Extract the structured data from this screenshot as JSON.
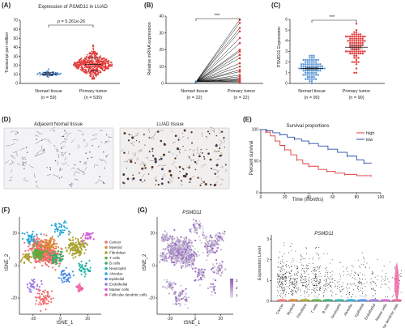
{
  "colors": {
    "normal": "#3f7fce",
    "tumor": "#e23b3b",
    "high": "#e23b3b",
    "low": "#2d4fa8",
    "accent_purple": "#8e5bb5"
  },
  "panels": {
    "A": {
      "letter": "(A)",
      "title_pre": "Expression of ",
      "title_gene": "PSMD11",
      "title_post": " in LUAD",
      "ylabel": "Transcript per million",
      "pvalue": "p = 5.261e-26",
      "groups": [
        {
          "name": "Nomarl tissue",
          "n": "(n = 59)"
        },
        {
          "name": "Primary tumor",
          "n": "(n = 539)"
        }
      ]
    },
    "B": {
      "letter": "(B)",
      "ylabel": "Relative mRNA expression",
      "sig": "***",
      "groups": [
        {
          "name": "Nomarl tissue",
          "n": "(n = 22)"
        },
        {
          "name": "Primary tumor",
          "n": "(n = 22)"
        }
      ]
    },
    "C": {
      "letter": "(C)",
      "ylabel": "PSMD11 Expression",
      "sig": "***",
      "groups": [
        {
          "name": "Nomarl tissue",
          "n": "(n = 90)"
        },
        {
          "name": "Primary tumor",
          "n": "(n = 90)"
        }
      ]
    },
    "D": {
      "letter": "(D)",
      "left_title": "Adjacent Nornal tissue",
      "right_title": "LUAD tissue"
    },
    "E": {
      "letter": "(E)",
      "title": "Survival proportions",
      "xlabel": "Time (months)",
      "ylabel": "Percent survival",
      "legend": [
        "high",
        "low"
      ]
    },
    "F": {
      "letter": "(F)",
      "xlabel": "tSNE_1",
      "ylabel": "tSNE_2",
      "legend": [
        {
          "label": "Cancer",
          "color": "#f26d6d"
        },
        {
          "label": "Myeloid",
          "color": "#d88a2f"
        },
        {
          "label": "Fibroblast",
          "color": "#a8a22d"
        },
        {
          "label": "T cells",
          "color": "#5bad3c"
        },
        {
          "label": "B cells",
          "color": "#2fb06c"
        },
        {
          "label": "Neutrophil",
          "color": "#27b3a5"
        },
        {
          "label": "Alveolar",
          "color": "#26a8d8"
        },
        {
          "label": "Epithelial",
          "color": "#4d8ae8"
        },
        {
          "label": "Endothelial",
          "color": "#9b74e0"
        },
        {
          "label": "Master cells",
          "color": "#d560d6"
        },
        {
          "label": "Follicular dendritic cells",
          "color": "#ec5da0"
        }
      ]
    },
    "G": {
      "letter": "(G)",
      "gene": "PSMD11",
      "xlabel": "tSNE_1",
      "ylabel": "tSNE_2",
      "violin_title": "PSMD11",
      "violin_ylabel": "Expression Level",
      "violin_categories": [
        "Cancer",
        "Myeloid",
        "Fibroblast",
        "T cells",
        "B cells",
        "Neutrophil",
        "Alveolar",
        "Epithelial",
        "Endothelial",
        "Master cells",
        "Follicular dendritic cells"
      ]
    }
  },
  "chart_data": [
    {
      "id": "A",
      "type": "scatter",
      "title": "Expression of PSMD11 in LUAD",
      "ylabel": "Transcript per million",
      "ylim": [
        0,
        70
      ],
      "yticks": [
        0,
        10,
        20,
        30,
        40,
        50,
        60,
        70
      ],
      "categories": [
        "Nomarl tissue",
        "Primary tumor"
      ],
      "series": [
        {
          "name": "Nomarl tissue",
          "n": 59,
          "mean": 10.5,
          "sd": 1.5,
          "min": 7,
          "max": 16
        },
        {
          "name": "Primary tumor",
          "n": 539,
          "mean": 21,
          "sd": 7,
          "min": 5,
          "max": 66
        }
      ]
    },
    {
      "id": "B",
      "type": "line",
      "ylabel": "Relative mRNA expression",
      "ylim": [
        0,
        40
      ],
      "yticks": [
        0,
        10,
        20,
        30,
        40
      ],
      "categories": [
        "Nomarl tissue",
        "Primary tumor"
      ],
      "pairs": [
        [
          1,
          38
        ],
        [
          1,
          36
        ],
        [
          1,
          33
        ],
        [
          1,
          31
        ],
        [
          1,
          27
        ],
        [
          1,
          24
        ],
        [
          1,
          20
        ],
        [
          1,
          19
        ],
        [
          1,
          17
        ],
        [
          1,
          15
        ],
        [
          1,
          12
        ],
        [
          1,
          10
        ],
        [
          1,
          8
        ],
        [
          1,
          7
        ],
        [
          1,
          5
        ],
        [
          1,
          4
        ],
        [
          1,
          3
        ],
        [
          1,
          2.5
        ],
        [
          1,
          2
        ],
        [
          1,
          1.5
        ],
        [
          1,
          1
        ],
        [
          1,
          0.8
        ]
      ]
    },
    {
      "id": "C",
      "type": "scatter",
      "ylabel": "PSMD11 Expression",
      "ylim": [
        0,
        6
      ],
      "yticks": [
        0,
        1,
        2,
        3,
        4,
        5,
        6
      ],
      "categories": [
        "Nomarl tissue",
        "Primary tumor"
      ],
      "series": [
        {
          "name": "Nomarl tissue",
          "n": 90,
          "mean": 1.4,
          "sd": 0.7,
          "min": 0,
          "max": 3.2
        },
        {
          "name": "Primary tumor",
          "n": 90,
          "mean": 3.4,
          "sd": 1.0,
          "min": 1,
          "max": 5.8
        }
      ]
    },
    {
      "id": "E",
      "type": "line",
      "title": "Survival proportions",
      "xlabel": "Time (months)",
      "ylabel": "Percent survival",
      "xlim": [
        0,
        100
      ],
      "ylim": [
        0,
        100
      ],
      "xticks": [
        0,
        20,
        40,
        60,
        80,
        100
      ],
      "yticks": [
        0,
        50,
        100
      ],
      "series": [
        {
          "name": "high",
          "points": [
            [
              0,
              100
            ],
            [
              4,
              96
            ],
            [
              8,
              90
            ],
            [
              12,
              82
            ],
            [
              16,
              75
            ],
            [
              20,
              68
            ],
            [
              25,
              60
            ],
            [
              30,
              52
            ],
            [
              35,
              46
            ],
            [
              40,
              42
            ],
            [
              48,
              37
            ],
            [
              55,
              34
            ],
            [
              62,
              31
            ],
            [
              70,
              29
            ],
            [
              80,
              27
            ],
            [
              92,
              27
            ]
          ]
        },
        {
          "name": "low",
          "points": [
            [
              0,
              100
            ],
            [
              5,
              98
            ],
            [
              10,
              95
            ],
            [
              16,
              92
            ],
            [
              22,
              88
            ],
            [
              28,
              85
            ],
            [
              34,
              82
            ],
            [
              40,
              78
            ],
            [
              48,
              74
            ],
            [
              56,
              69
            ],
            [
              64,
              64
            ],
            [
              72,
              58
            ],
            [
              80,
              52
            ],
            [
              86,
              47
            ],
            [
              92,
              46
            ]
          ]
        }
      ]
    },
    {
      "id": "F",
      "type": "scatter",
      "xlabel": "tSNE_1",
      "ylabel": "tSNE_2",
      "xticks": [
        -20,
        0,
        20
      ],
      "yticks": [
        -20,
        0,
        20
      ]
    },
    {
      "id": "G",
      "type": "scatter",
      "xlabel": "tSNE_1",
      "ylabel": "tSNE_2",
      "xticks": [
        -20,
        0,
        20
      ],
      "yticks": [
        -20,
        0,
        20
      ],
      "colorbar_ticks": [
        "1",
        "2",
        "3"
      ]
    },
    {
      "id": "G-violin",
      "type": "scatter",
      "ylabel": "Expression Level",
      "ylim": [
        0,
        3.2
      ],
      "yticks": [
        0,
        1,
        2,
        3
      ],
      "categories": [
        "Cancer",
        "Myeloid",
        "Fibroblast",
        "T cells",
        "B cells",
        "Neutrophil",
        "Alveolar",
        "Epithelial",
        "Endothelial",
        "Master cells",
        "Follicular dendritic cells"
      ]
    }
  ]
}
